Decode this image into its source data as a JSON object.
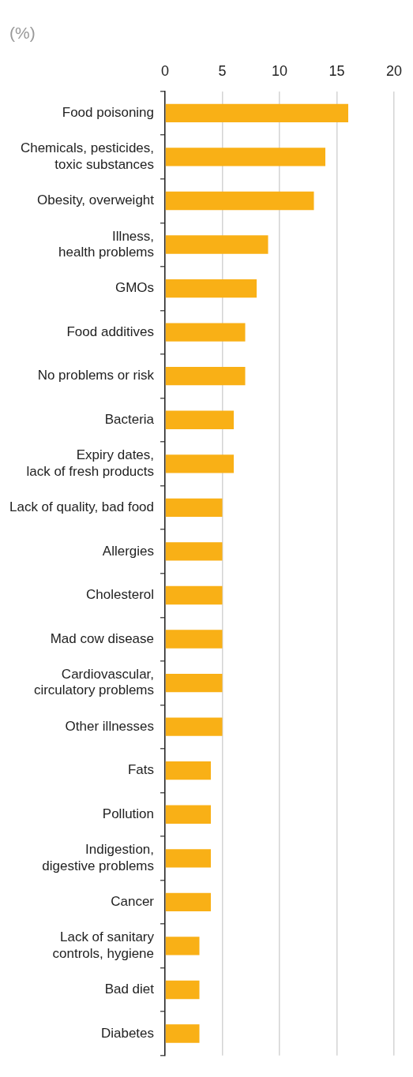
{
  "chart_data": {
    "type": "bar",
    "orientation": "horizontal",
    "subtitle": "(%)",
    "categories": [
      "Food poisoning",
      "Chemicals, pesticides,\ntoxic substances",
      "Obesity, overweight",
      "Illness,\nhealth problems",
      "GMOs",
      "Food additives",
      "No problems or risk",
      "Bacteria",
      "Expiry dates,\nlack of fresh products",
      "Lack of quality, bad food",
      "Allergies",
      "Cholesterol",
      "Mad cow disease",
      "Cardiovascular,\ncirculatory problems",
      "Other illnesses",
      "Fats",
      "Pollution",
      "Indigestion,\ndigestive problems",
      "Cancer",
      "Lack of sanitary\ncontrols, hygiene",
      "Bad diet",
      "Diabetes"
    ],
    "values": [
      16,
      14,
      13,
      9,
      8,
      7,
      7,
      6,
      6,
      5,
      5,
      5,
      5,
      5,
      5,
      4,
      4,
      4,
      4,
      3,
      3,
      3
    ],
    "color": "#f9b016",
    "xlim": [
      0,
      20
    ],
    "xticks": [
      0,
      5,
      10,
      15,
      20
    ],
    "grid": "x"
  }
}
